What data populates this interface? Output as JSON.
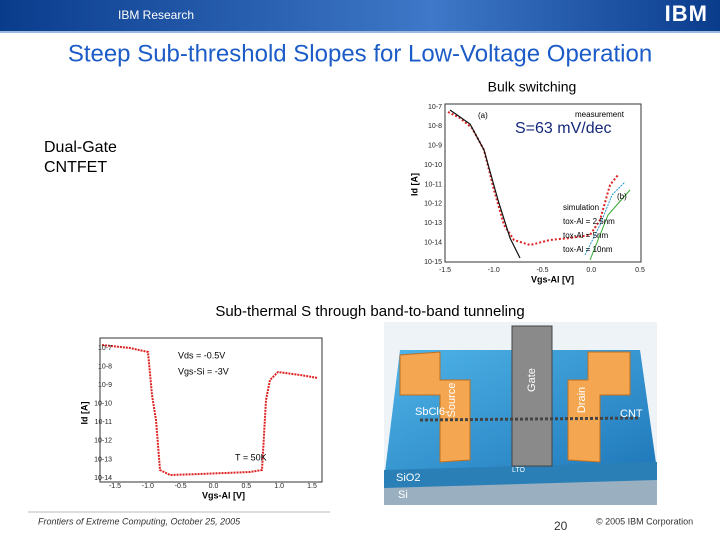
{
  "header": {
    "brand": "IBM Research",
    "logo": "IBM"
  },
  "title": "Steep Sub-threshold Slopes for Low-Voltage Operation",
  "top_section": {
    "caption": "Bulk switching",
    "device_label": [
      "Dual-Gate",
      "CNTFET"
    ],
    "slope_annotation": "S=63 mV/dec",
    "plot": {
      "y_label": "Id [A]",
      "x_label": "Vgs-Al [V]",
      "yticks": [
        "10-7",
        "10-8",
        "10-9",
        "10-10",
        "10-11",
        "10-12",
        "10-13",
        "10-14",
        "10-15"
      ],
      "xticks": [
        "-1.5",
        "-1.0",
        "-0.5",
        "0.0",
        "0.5"
      ],
      "legend": [
        "measurement",
        "simulation",
        "tox-Al = 2.5nm",
        "tox-Al = 5nm",
        "tox-Al = 10nm"
      ],
      "markers": [
        "(a)",
        "(b)"
      ]
    }
  },
  "bottom_section": {
    "caption": "Sub-thermal S through band-to-band tunneling",
    "plot": {
      "y_label": "Id [A]",
      "x_label": "Vgs-Al [V]",
      "yticks": [
        "10-7",
        "10-8",
        "10-9",
        "10-10",
        "10-11",
        "10-12",
        "10-13",
        "10-14"
      ],
      "xticks": [
        "-1.5",
        "-1.0",
        "-0.5",
        "0.0",
        "0.5",
        "1.0",
        "1.5"
      ],
      "annotations": [
        "Vds = -0.5V",
        "Vgs-Si = -3V",
        "T = 50K"
      ]
    },
    "device_labels": [
      "SbCl6-",
      "Source",
      "Gate",
      "Drain",
      "CNT",
      "LTO",
      "SiO2",
      "Si"
    ]
  },
  "footer": {
    "event": "Frontiers of Extreme Computing, October 25, 2005",
    "page": "20",
    "copyright": "© 2005 IBM Corporation"
  }
}
